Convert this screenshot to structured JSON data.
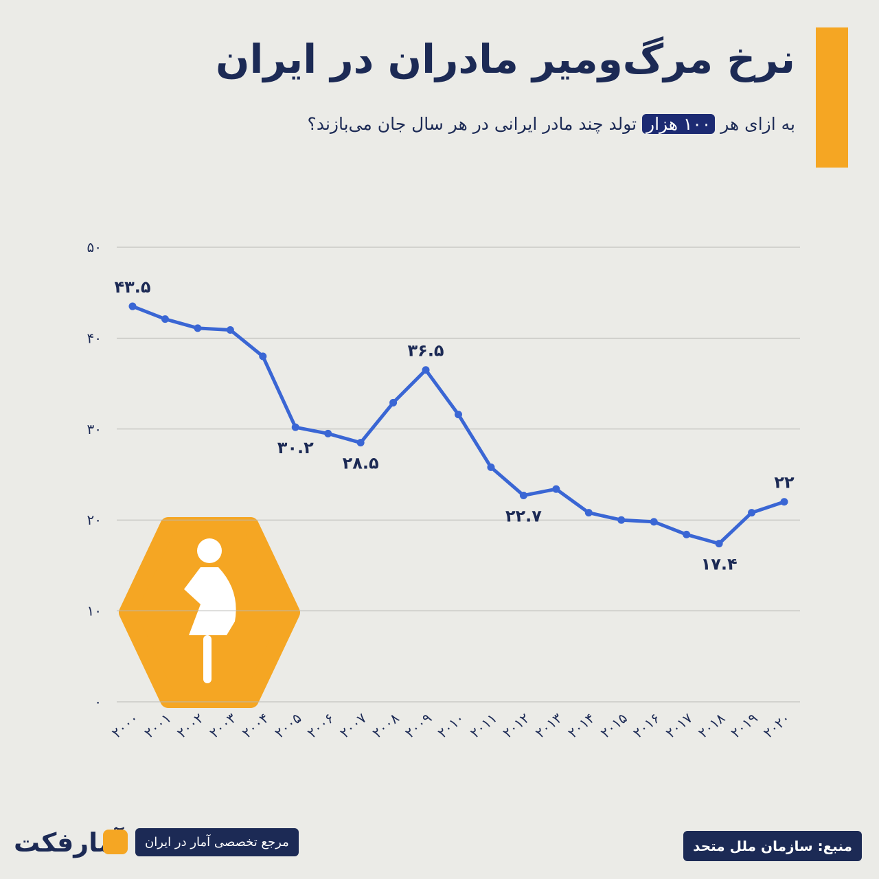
{
  "header": {
    "title": "نرخ مرگ‌ومیر مادران در ایران",
    "subtitle_start": "به ازای هر",
    "subtitle_highlight": "۱۰۰ هزار",
    "subtitle_end": "تولد چند مادر ایرانی در هر سال جان می‌بازند؟"
  },
  "chart_data": {
    "type": "line",
    "categories": [
      "۲۰۰۰",
      "۲۰۰۱",
      "۲۰۰۲",
      "۲۰۰۳",
      "۲۰۰۴",
      "۲۰۰۵",
      "۲۰۰۶",
      "۲۰۰۷",
      "۲۰۰۸",
      "۲۰۰۹",
      "۲۰۱۰",
      "۲۰۱۱",
      "۲۰۱۲",
      "۲۰۱۳",
      "۲۰۱۴",
      "۲۰۱۵",
      "۲۰۱۶",
      "۲۰۱۷",
      "۲۰۱۸",
      "۲۰۱۹",
      "۲۰۲۰"
    ],
    "series": [
      {
        "name": "نرخ مرگ‌ومیر مادران",
        "color": "#3a66d4",
        "values": [
          43.5,
          42.1,
          41.1,
          40.9,
          38.0,
          30.2,
          29.5,
          28.5,
          32.9,
          36.5,
          31.6,
          25.8,
          22.7,
          23.4,
          20.8,
          20.0,
          19.8,
          18.4,
          17.4,
          20.8,
          22
        ],
        "value_labels": [
          "۴۳.۵",
          null,
          null,
          null,
          null,
          "۳۰.۲",
          null,
          "۲۸.۵",
          null,
          "۳۶.۵",
          null,
          null,
          "۲۲.۷",
          null,
          null,
          null,
          null,
          null,
          "۱۷.۴",
          null,
          "۲۲"
        ]
      }
    ],
    "ylim": [
      0,
      50
    ],
    "yticks": [
      {
        "value": 0,
        "label": "۰"
      },
      {
        "value": 10,
        "label": "۱۰"
      },
      {
        "value": 20,
        "label": "۲۰"
      },
      {
        "value": 30,
        "label": "۳۰"
      },
      {
        "value": 40,
        "label": "۴۰"
      },
      {
        "value": 50,
        "label": "۵۰"
      }
    ],
    "grid": true
  },
  "footer": {
    "brand": "آمارفکت",
    "tagline": "مرجع تخصصی آمار در ایران",
    "source": "منبع: سازمان ملل متحد"
  }
}
